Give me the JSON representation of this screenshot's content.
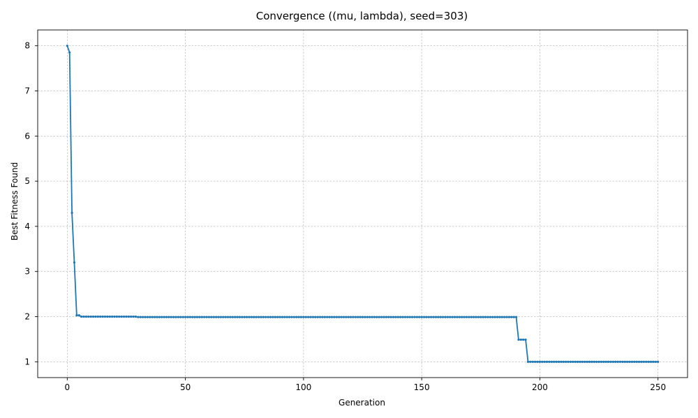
{
  "chart_data": {
    "type": "line",
    "title": "Convergence ((mu, lambda), seed=303)",
    "xlabel": "Generation",
    "ylabel": "Best Fitness Found",
    "xlim": [
      -12.5,
      262.5
    ],
    "ylim": [
      0.65,
      8.35
    ],
    "xticks": [
      0,
      50,
      100,
      150,
      200,
      250
    ],
    "yticks": [
      1,
      2,
      3,
      4,
      5,
      6,
      7,
      8
    ],
    "grid": true,
    "line_color": "#1f77b4",
    "markers": true,
    "series": [
      {
        "x_start": 0,
        "x_step": 1,
        "values": [
          8.0,
          7.85,
          4.3,
          3.2,
          2.03,
          2.03,
          2.0,
          2.0,
          2.0,
          2.0,
          2.0,
          2.0,
          2.0,
          2.0,
          2.0,
          2.0,
          2.0,
          2.0,
          2.0,
          2.0,
          2.0,
          2.0,
          2.0,
          2.0,
          2.0,
          2.0,
          2.0,
          2.0,
          2.0,
          2.0,
          1.99,
          1.99,
          1.99,
          1.99,
          1.99,
          1.99,
          1.99,
          1.99,
          1.99,
          1.99,
          1.99,
          1.99,
          1.99,
          1.99,
          1.99,
          1.99,
          1.99,
          1.99,
          1.99,
          1.99,
          1.99,
          1.99,
          1.99,
          1.99,
          1.99,
          1.99,
          1.99,
          1.99,
          1.99,
          1.99,
          1.99,
          1.99,
          1.99,
          1.99,
          1.99,
          1.99,
          1.99,
          1.99,
          1.99,
          1.99,
          1.99,
          1.99,
          1.99,
          1.99,
          1.99,
          1.99,
          1.99,
          1.99,
          1.99,
          1.99,
          1.99,
          1.99,
          1.99,
          1.99,
          1.99,
          1.99,
          1.99,
          1.99,
          1.99,
          1.99,
          1.99,
          1.99,
          1.99,
          1.99,
          1.99,
          1.99,
          1.99,
          1.99,
          1.99,
          1.99,
          1.99,
          1.99,
          1.99,
          1.99,
          1.99,
          1.99,
          1.99,
          1.99,
          1.99,
          1.99,
          1.99,
          1.99,
          1.99,
          1.99,
          1.99,
          1.99,
          1.99,
          1.99,
          1.99,
          1.99,
          1.99,
          1.99,
          1.99,
          1.99,
          1.99,
          1.99,
          1.99,
          1.99,
          1.99,
          1.99,
          1.99,
          1.99,
          1.99,
          1.99,
          1.99,
          1.99,
          1.99,
          1.99,
          1.99,
          1.99,
          1.99,
          1.99,
          1.99,
          1.99,
          1.99,
          1.99,
          1.99,
          1.99,
          1.99,
          1.99,
          1.99,
          1.99,
          1.99,
          1.99,
          1.99,
          1.99,
          1.99,
          1.99,
          1.99,
          1.99,
          1.99,
          1.99,
          1.99,
          1.99,
          1.99,
          1.99,
          1.99,
          1.99,
          1.99,
          1.99,
          1.99,
          1.99,
          1.99,
          1.99,
          1.99,
          1.99,
          1.99,
          1.99,
          1.99,
          1.99,
          1.99,
          1.99,
          1.99,
          1.99,
          1.99,
          1.99,
          1.99,
          1.99,
          1.99,
          1.99,
          1.99,
          1.49,
          1.49,
          1.49,
          1.49,
          1.0,
          1.0,
          1.0,
          1.0,
          1.0,
          1.0,
          1.0,
          1.0,
          1.0,
          1.0,
          1.0,
          1.0,
          1.0,
          1.0,
          1.0,
          1.0,
          1.0,
          1.0,
          1.0,
          1.0,
          1.0,
          1.0,
          1.0,
          1.0,
          1.0,
          1.0,
          1.0,
          1.0,
          1.0,
          1.0,
          1.0,
          1.0,
          1.0,
          1.0,
          1.0,
          1.0,
          1.0,
          1.0,
          1.0,
          1.0,
          1.0,
          1.0,
          1.0,
          1.0,
          1.0,
          1.0,
          1.0,
          1.0,
          1.0,
          1.0,
          1.0,
          1.0,
          1.0,
          1.0,
          1.0,
          1.0
        ]
      }
    ]
  }
}
